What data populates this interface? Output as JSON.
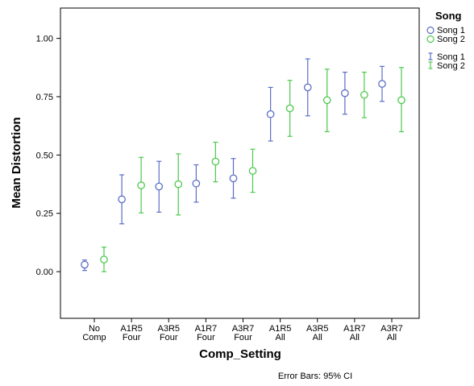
{
  "chart_data": {
    "type": "scatter",
    "xlabel": "Comp_Setting",
    "ylabel": "Mean Distortion",
    "ylim": [
      -0.2,
      1.13
    ],
    "yticks": [
      "0.00",
      "0.25",
      "0.50",
      "0.75",
      "1.00"
    ],
    "ytick_values": [
      0,
      0.25,
      0.5,
      0.75,
      1.0
    ],
    "categories": [
      [
        "No",
        "Comp"
      ],
      [
        "A1R5",
        "Four"
      ],
      [
        "A3R5",
        "Four"
      ],
      [
        "A1R7",
        "Four"
      ],
      [
        "A3R7",
        "Four"
      ],
      [
        "A1R5",
        "All"
      ],
      [
        "A3R5",
        "All"
      ],
      [
        "A1R7",
        "All"
      ],
      [
        "A3R7",
        "All"
      ]
    ],
    "grid": false,
    "legend": {
      "title": "Song",
      "position": "right"
    },
    "footnote": "Error Bars: 95% CI",
    "series": [
      {
        "name": "Song 1",
        "color": "#5b6fc4",
        "marker": "circle",
        "values": [
          0.03,
          0.31,
          0.365,
          0.378,
          0.4,
          0.675,
          0.79,
          0.765,
          0.805
        ],
        "ci_low": [
          0.005,
          0.205,
          0.255,
          0.298,
          0.315,
          0.56,
          0.668,
          0.675,
          0.73
        ],
        "ci_high": [
          0.05,
          0.415,
          0.473,
          0.458,
          0.485,
          0.79,
          0.912,
          0.855,
          0.88
        ]
      },
      {
        "name": "Song 2",
        "color": "#4cc94c",
        "marker": "circle",
        "values": [
          0.052,
          0.37,
          0.375,
          0.472,
          0.432,
          0.7,
          0.735,
          0.758,
          0.735
        ],
        "ci_low": [
          0.0,
          0.252,
          0.243,
          0.385,
          0.34,
          0.58,
          0.6,
          0.66,
          0.6
        ],
        "ci_high": [
          0.105,
          0.49,
          0.505,
          0.555,
          0.525,
          0.82,
          0.868,
          0.855,
          0.875
        ]
      }
    ]
  }
}
